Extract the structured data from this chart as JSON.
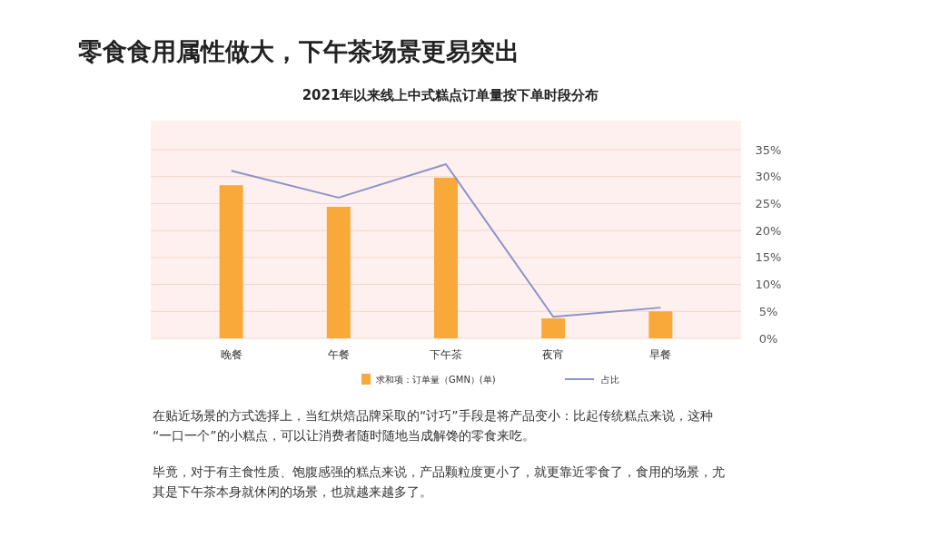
{
  "chart_data": {
    "type": "bar",
    "title": "零食食用属性做大，下午茶场景更易突出",
    "subtitle": "2021年以来线上中式糕点订单量按下单时段分布",
    "categories": [
      "晚餐",
      "午餐",
      "下午茶",
      "夜宵",
      "早餐"
    ],
    "series": [
      {
        "name": "求和项：订单量（GMN）(单)",
        "color": "#f9a93a",
        "axis": "y2",
        "values": [
          28.4,
          24.4,
          29.8,
          3.7,
          5.0
        ]
      },
      {
        "name": "占比",
        "type": "line",
        "color": "#8e92c8",
        "axis": "y2",
        "values": [
          31.1,
          26.1,
          32.3,
          4.0,
          5.7
        ]
      }
    ],
    "y2lim": [
      0,
      35
    ],
    "y2ticks": [
      {
        "value": 0,
        "label": "0%"
      },
      {
        "value": 5,
        "label": "5%"
      },
      {
        "value": 10,
        "label": "10%"
      },
      {
        "value": 15,
        "label": "15%"
      },
      {
        "value": 20,
        "label": "20%"
      },
      {
        "value": 25,
        "label": "25%"
      },
      {
        "value": 30,
        "label": "30%"
      },
      {
        "value": 35,
        "label": "35%"
      }
    ],
    "grid": "y",
    "legend": "bottom",
    "marker": "none",
    "line_style": "solid",
    "annotations": [
      "在贴近场景的方式选择上，当红烘焙品牌采取的“讨巧”手段是将产品变小：比起传统糕点来说，这种“一口一个”的小糕点，可以让消费者随时随地当成解馋的零食来吃。",
      "毕竟，对于有主食性质、饱腹感强的糕点来说，产品颗粒度更小了，就更靠近零食了，食用的场景，尤其是下午茶本身就休闲的场景，也就越来越多了。"
    ]
  }
}
